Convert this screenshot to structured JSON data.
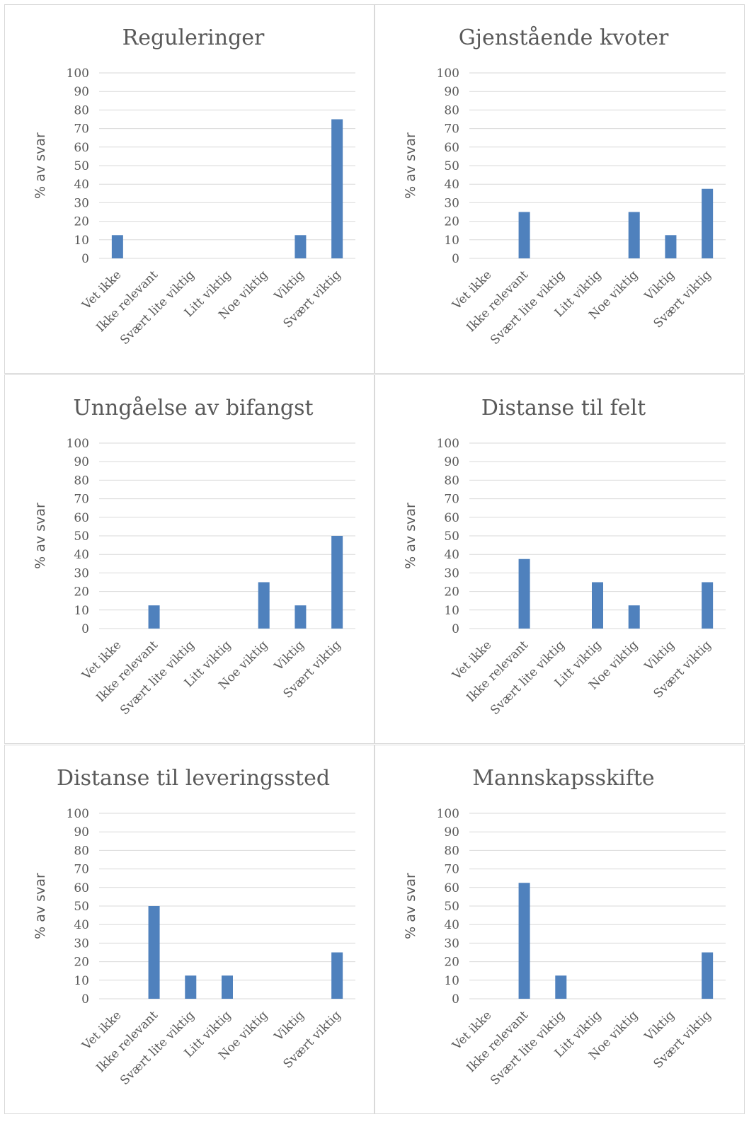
{
  "bar_color": "#4F81BD",
  "chart_data": [
    {
      "type": "bar",
      "title": "Reguleringer",
      "ylabel": "% av svar",
      "xlabel": "",
      "ylim": [
        0,
        100
      ],
      "yticks": [
        0,
        10,
        20,
        30,
        40,
        50,
        60,
        70,
        80,
        90,
        100
      ],
      "grid": true,
      "categories": [
        "Vet ikke",
        "Ikke relevant",
        "Svært lite viktig",
        "Litt viktig",
        "Noe viktig",
        "Viktig",
        "Svært viktig"
      ],
      "values": [
        12.5,
        0,
        0,
        0,
        0,
        12.5,
        75
      ]
    },
    {
      "type": "bar",
      "title": "Gjenstående kvoter",
      "ylabel": "% av svar",
      "xlabel": "",
      "ylim": [
        0,
        100
      ],
      "yticks": [
        0,
        10,
        20,
        30,
        40,
        50,
        60,
        70,
        80,
        90,
        100
      ],
      "grid": true,
      "categories": [
        "Vet ikke",
        "Ikke relevant",
        "Svært lite viktig",
        "Litt viktig",
        "Noe viktig",
        "Viktig",
        "Svært viktig"
      ],
      "values": [
        0,
        25,
        0,
        0,
        25,
        12.5,
        37.5
      ]
    },
    {
      "type": "bar",
      "title": "Unngåelse av bifangst",
      "ylabel": "% av svar",
      "xlabel": "",
      "ylim": [
        0,
        100
      ],
      "yticks": [
        0,
        10,
        20,
        30,
        40,
        50,
        60,
        70,
        80,
        90,
        100
      ],
      "grid": true,
      "categories": [
        "Vet ikke",
        "Ikke relevant",
        "Svært lite viktig",
        "Litt viktig",
        "Noe viktig",
        "Viktig",
        "Svært viktig"
      ],
      "values": [
        0,
        12.5,
        0,
        0,
        25,
        12.5,
        50
      ]
    },
    {
      "type": "bar",
      "title": "Distanse til felt",
      "ylabel": "% av svar",
      "xlabel": "",
      "ylim": [
        0,
        100
      ],
      "yticks": [
        0,
        10,
        20,
        30,
        40,
        50,
        60,
        70,
        80,
        90,
        100
      ],
      "grid": true,
      "categories": [
        "Vet ikke",
        "Ikke relevant",
        "Svært lite viktig",
        "Litt viktig",
        "Noe viktig",
        "Viktig",
        "Svært viktig"
      ],
      "values": [
        0,
        37.5,
        0,
        25,
        12.5,
        0,
        25
      ]
    },
    {
      "type": "bar",
      "title": "Distanse til leveringssted",
      "ylabel": "% av svar",
      "xlabel": "",
      "ylim": [
        0,
        100
      ],
      "yticks": [
        0,
        10,
        20,
        30,
        40,
        50,
        60,
        70,
        80,
        90,
        100
      ],
      "grid": true,
      "categories": [
        "Vet ikke",
        "Ikke relevant",
        "Svært lite viktig",
        "Litt viktig",
        "Noe viktig",
        "Viktig",
        "Svært viktig"
      ],
      "values": [
        0,
        50,
        12.5,
        12.5,
        0,
        0,
        25
      ]
    },
    {
      "type": "bar",
      "title": "Mannskapsskifte",
      "ylabel": "% av svar",
      "xlabel": "",
      "ylim": [
        0,
        100
      ],
      "yticks": [
        0,
        10,
        20,
        30,
        40,
        50,
        60,
        70,
        80,
        90,
        100
      ],
      "grid": true,
      "categories": [
        "Vet ikke",
        "Ikke relevant",
        "Svært lite viktig",
        "Litt viktig",
        "Noe viktig",
        "Viktig",
        "Svært viktig"
      ],
      "values": [
        0,
        62.5,
        12.5,
        0,
        0,
        0,
        25
      ]
    }
  ]
}
